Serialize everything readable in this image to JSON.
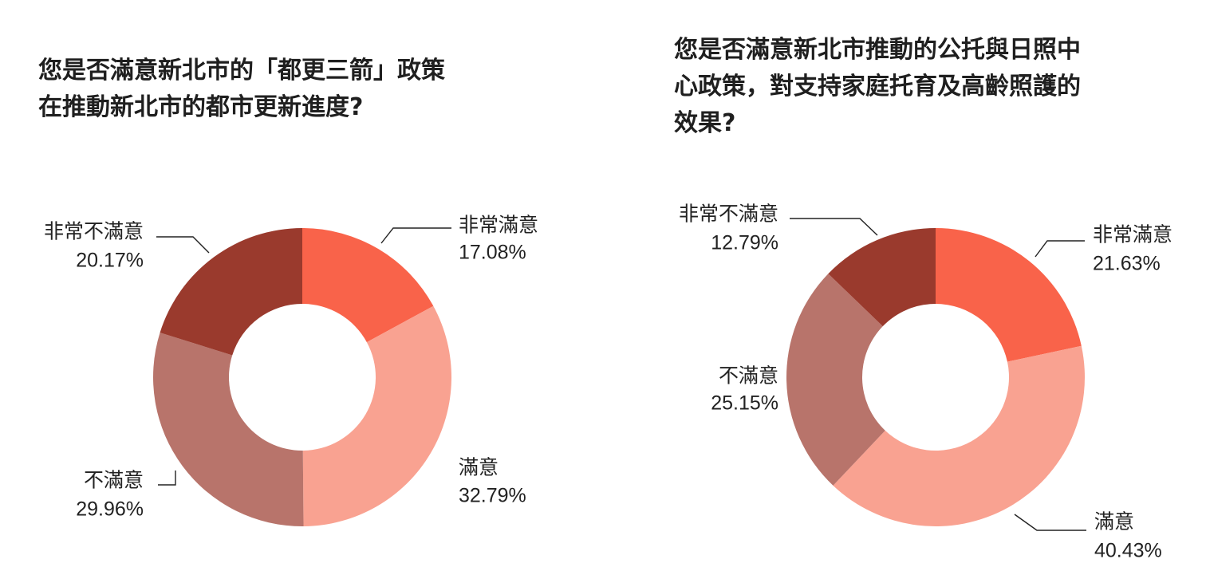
{
  "colors": {
    "very_satisfied": "#f9634a",
    "satisfied": "#f9a291",
    "dissatisfied": "#b8746b",
    "very_dissatisfied": "#9a3a2d",
    "label_text": "#222222"
  },
  "chart_data": [
    {
      "type": "pie",
      "style": "donut",
      "title_lines": [
        "您是否滿意新北市的「都更三箭」政策",
        "在推動新北市的都市更新進度?"
      ],
      "categories": [
        "非常滿意",
        "滿意",
        "不滿意",
        "非常不滿意"
      ],
      "values": [
        17.08,
        32.79,
        29.96,
        20.17
      ],
      "value_labels": [
        "17.08%",
        "32.79%",
        "29.96%",
        "20.17%"
      ]
    },
    {
      "type": "pie",
      "style": "donut",
      "title_lines": [
        "您是否滿意新北市推動的公托與日照中",
        "心政策，對支持家庭托育及高齡照護的",
        "效果?"
      ],
      "categories": [
        "非常滿意",
        "滿意",
        "不滿意",
        "非常不滿意"
      ],
      "values": [
        21.63,
        40.43,
        25.15,
        12.79
      ],
      "value_labels": [
        "21.63%",
        "40.43%",
        "25.15%",
        "12.79%"
      ]
    }
  ]
}
